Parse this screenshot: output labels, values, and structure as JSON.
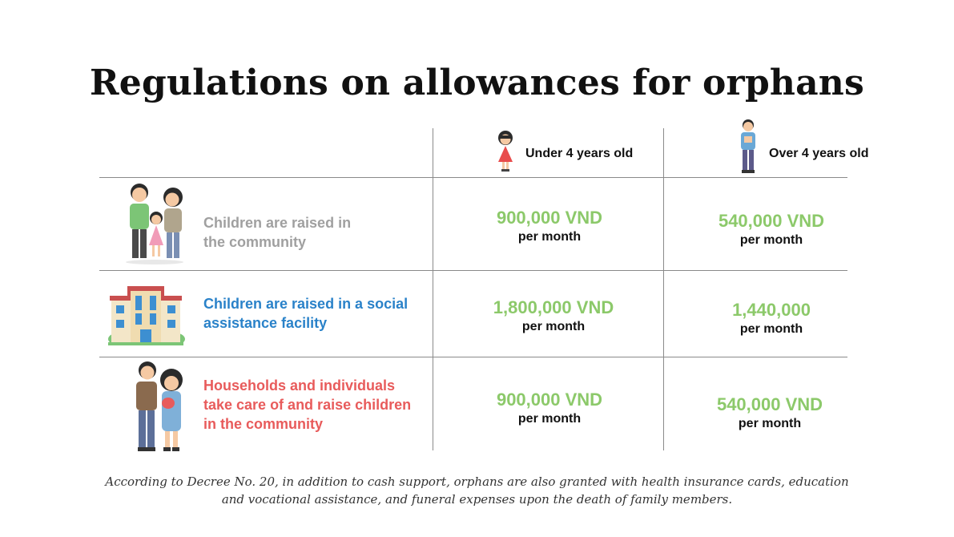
{
  "title": "Regulations on allowances for orphans",
  "columns": {
    "under4": "Under 4 years old",
    "over4": "Over 4 years old"
  },
  "rows": [
    {
      "label": "Children are raised in the community",
      "label_color": "#a0a0a0",
      "icon": "family-icon",
      "under4": {
        "amount": "900,000 VND",
        "period": "per month"
      },
      "over4": {
        "amount": "540,000 VND",
        "period": "per month"
      }
    },
    {
      "label": "Children are raised in a social assistance facility",
      "label_color": "#2a82c9",
      "icon": "building-icon",
      "under4": {
        "amount": "1,800,000 VND",
        "period": "per month"
      },
      "over4": {
        "amount": "1,440,000",
        "period": "per month"
      }
    },
    {
      "label": "Households and individuals take care of and raise children in the community",
      "label_color": "#e85b5b",
      "icon": "couple-with-baby-icon",
      "under4": {
        "amount": "900,000 VND",
        "period": "per month"
      },
      "over4": {
        "amount": "540,000 VND",
        "period": "per month"
      }
    }
  ],
  "amount_color": "#8cc96a",
  "footnote_line1": "According to Decree No. 20, in addition to cash support, orphans are also granted with health insurance cards, education",
  "footnote_line2": "and vocational assistance, and funeral expenses upon the death of family members."
}
